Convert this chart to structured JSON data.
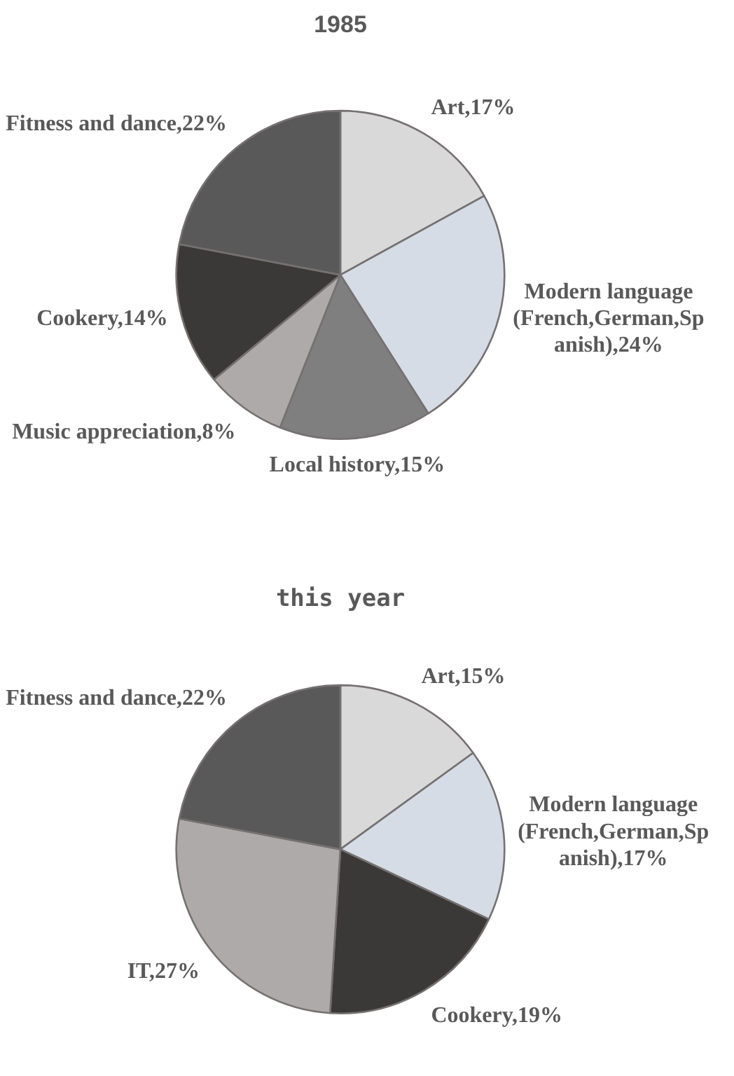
{
  "chart_data": [
    {
      "type": "pie",
      "title": "1985",
      "categories": [
        "Art",
        "Modern language (French,German,Spanish)",
        "Local history",
        "Music appreciation",
        "Cookery",
        "Fitness and dance"
      ],
      "values": [
        17,
        24,
        15,
        8,
        14,
        22
      ],
      "value_labels": [
        "17%",
        "24%",
        "15%",
        "8%",
        "14%",
        "22%"
      ],
      "colors": [
        "#d9d9d9",
        "#d6dce5",
        "#7f7f7f",
        "#aeaaaa",
        "#3b3838",
        "#595959"
      ]
    },
    {
      "type": "pie",
      "title": "this year",
      "categories": [
        "Art",
        "Modern language (French,German,Spanish)",
        "Cookery",
        "IT",
        "Fitness and dance"
      ],
      "values": [
        15,
        17,
        19,
        27,
        22
      ],
      "value_labels": [
        "15%",
        "17%",
        "19%",
        "27%",
        "22%"
      ],
      "colors": [
        "#d9d9d9",
        "#d6dce5",
        "#3b3838",
        "#aeaaaa",
        "#595959"
      ]
    }
  ]
}
